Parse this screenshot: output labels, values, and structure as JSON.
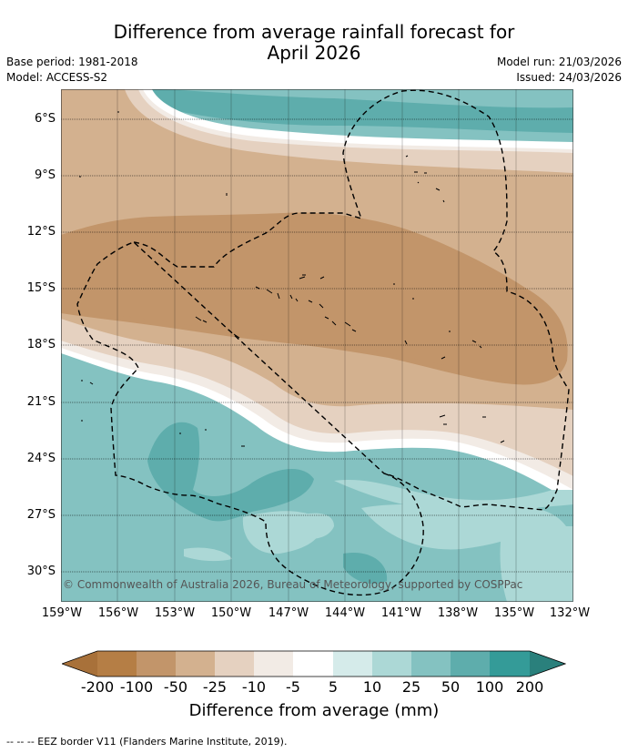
{
  "title_line1": "Difference from average rainfall forecast for",
  "title_line2": "April 2026",
  "meta_left": {
    "base_period": "Base period: 1981-2018",
    "model": "Model: ACCESS-S2"
  },
  "meta_right": {
    "model_run": "Model run: 21/03/2026",
    "issued": "Issued: 24/03/2026"
  },
  "map": {
    "lat_labels": [
      "6°S",
      "9°S",
      "12°S",
      "15°S",
      "18°S",
      "21°S",
      "24°S",
      "27°S",
      "30°S"
    ],
    "lon_labels": [
      "159°W",
      "156°W",
      "153°W",
      "150°W",
      "147°W",
      "144°W",
      "141°W",
      "138°W",
      "135°W",
      "132°W"
    ],
    "copyright": "© Commonwealth of Australia 2026, Bureau of Meteorology, supported by COSPPac"
  },
  "colorbar": {
    "labels": [
      "-200",
      "-100",
      "-50",
      "-25",
      "-10",
      "-5",
      "5",
      "10",
      "25",
      "50",
      "100",
      "200"
    ],
    "colors": [
      "#a8713a",
      "#b57e45",
      "#c2956a",
      "#d3b18f",
      "#e5d1c0",
      "#f2ebe5",
      "#ffffff",
      "#d5ebea",
      "#acd8d6",
      "#84c2c1",
      "#5eadac",
      "#349b98",
      "#2a807c"
    ],
    "title": "Difference from average (mm)"
  },
  "footer": "-- -- -- EEZ border V11 (Flanders Marine Institute, 2019)."
}
